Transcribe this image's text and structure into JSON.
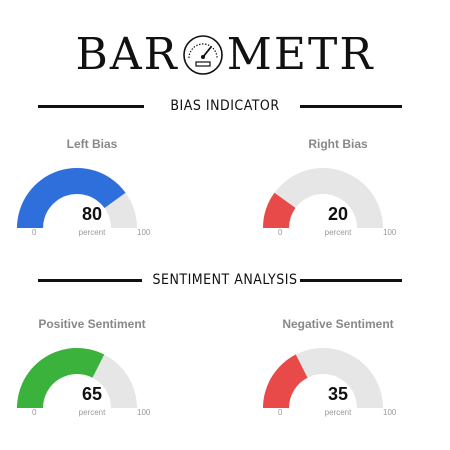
{
  "logo": {
    "left": "BAR",
    "right": "METR"
  },
  "sections": [
    {
      "title": "BIAS INDICATOR"
    },
    {
      "title": "SENTIMENT ANALYSIS"
    }
  ],
  "gauges": [
    {
      "title": "Left Bias",
      "value": 80,
      "unit": "percent",
      "min": "0",
      "max": "100",
      "color": "#2f6fdc"
    },
    {
      "title": "Right Bias",
      "value": 20,
      "unit": "percent",
      "min": "0",
      "max": "100",
      "color": "#e84a4a"
    },
    {
      "title": "Positive Sentiment",
      "value": 65,
      "unit": "percent",
      "min": "0",
      "max": "100",
      "color": "#3bb23b"
    },
    {
      "title": "Negative Sentiment",
      "value": 35,
      "unit": "percent",
      "min": "0",
      "max": "100",
      "color": "#e84a4a"
    }
  ],
  "colors": {
    "track": "#e6e6e6",
    "ink": "#111111"
  }
}
